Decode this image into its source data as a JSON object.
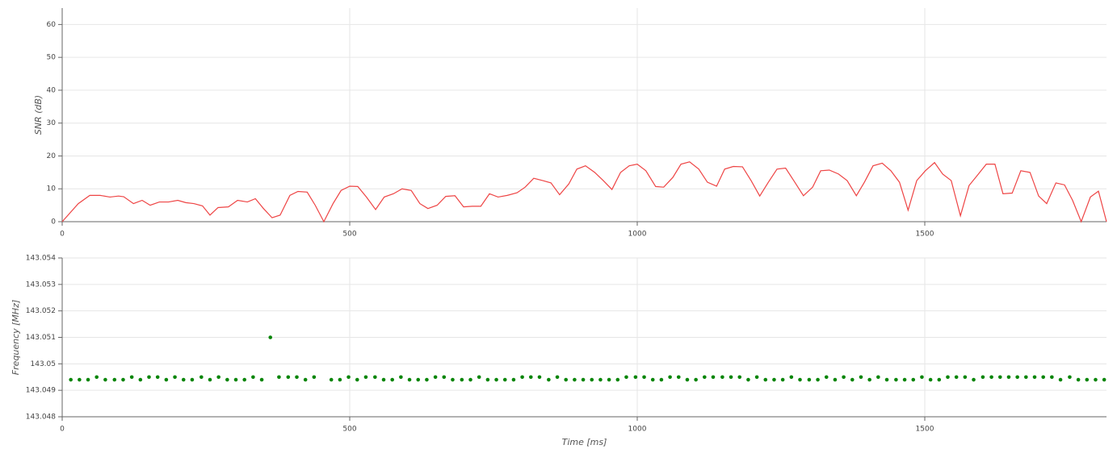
{
  "chart_data": [
    {
      "type": "line",
      "ylabel": "SNR (dB)",
      "color": "#ee4444",
      "grid": true,
      "xlim": [
        0,
        1816
      ],
      "xticks": [
        0,
        500,
        1000,
        1500
      ],
      "ylim": [
        0,
        65
      ],
      "yticks": [
        0,
        10,
        20,
        30,
        40,
        50,
        60
      ],
      "x": [
        0,
        28,
        48,
        66,
        83,
        98,
        107,
        124,
        139,
        153,
        169,
        185,
        201,
        215,
        229,
        244,
        257,
        271,
        289,
        305,
        322,
        336,
        350,
        365,
        379,
        396,
        410,
        426,
        440,
        455,
        471,
        485,
        500,
        514,
        529,
        545,
        560,
        576,
        591,
        607,
        622,
        636,
        652,
        667,
        683,
        698,
        713,
        728,
        743,
        758,
        774,
        791,
        805,
        820,
        836,
        850,
        865,
        881,
        895,
        910,
        926,
        941,
        956,
        971,
        986,
        1000,
        1015,
        1032,
        1046,
        1062,
        1076,
        1091,
        1107,
        1122,
        1138,
        1152,
        1167,
        1183,
        1198,
        1213,
        1228,
        1243,
        1258,
        1274,
        1289,
        1305,
        1319,
        1334,
        1350,
        1365,
        1381,
        1395,
        1410,
        1426,
        1441,
        1456,
        1471,
        1486,
        1501,
        1517,
        1531,
        1546,
        1562,
        1577,
        1591,
        1607,
        1622,
        1636,
        1652,
        1667,
        1683,
        1698,
        1712,
        1728,
        1743,
        1757,
        1772,
        1788,
        1802,
        1816
      ],
      "values": [
        0,
        5.5,
        8,
        8,
        7.5,
        7.8,
        7.6,
        5.5,
        6.5,
        5,
        6,
        6,
        6.5,
        5.8,
        5.5,
        4.8,
        2,
        4.3,
        4.5,
        6.5,
        6,
        7,
        4,
        1.2,
        2,
        8,
        9.2,
        9,
        5,
        0,
        5.5,
        9.5,
        10.8,
        10.7,
        7.5,
        3.7,
        7.5,
        8.5,
        10,
        9.5,
        5.5,
        4,
        5,
        7.7,
        7.9,
        4.5,
        4.7,
        4.7,
        8.5,
        7.5,
        8,
        8.8,
        10.5,
        13.2,
        12.5,
        11.8,
        8.2,
        11.5,
        16,
        17,
        15,
        12.5,
        9.8,
        15,
        17,
        17.5,
        15.5,
        10.7,
        10.5,
        13.5,
        17.5,
        18.2,
        16,
        12,
        10.8,
        16,
        16.8,
        16.7,
        12.5,
        7.8,
        12,
        16,
        16.3,
        12,
        7.9,
        10.5,
        15.5,
        15.7,
        14.5,
        12.5,
        7.9,
        12,
        17,
        17.8,
        15.5,
        12,
        3.5,
        12.5,
        15.5,
        18,
        14.5,
        12.5,
        1.8,
        11,
        14,
        17.5,
        17.5,
        8.5,
        8.7,
        15.5,
        15,
        7.8,
        5.5,
        11.8,
        11.2,
        6.5,
        0,
        7.5,
        9.3,
        0
      ]
    },
    {
      "type": "scatter",
      "ylabel": "Frequency [MHz]",
      "xlabel": "Time [ms]",
      "color": "#078507",
      "grid": true,
      "xlim": [
        0,
        1816
      ],
      "xticks": [
        0,
        500,
        1000,
        1500
      ],
      "ylim": [
        143.048,
        143.054
      ],
      "yticks": [
        143.048,
        143.049,
        143.05,
        143.051,
        143.052,
        143.053,
        143.054
      ],
      "x": [
        15,
        30,
        45,
        60,
        75,
        91,
        106,
        121,
        136,
        151,
        166,
        181,
        196,
        211,
        226,
        242,
        257,
        272,
        287,
        302,
        317,
        332,
        347,
        362,
        377,
        393,
        408,
        423,
        438,
        468,
        483,
        498,
        513,
        528,
        544,
        559,
        574,
        589,
        604,
        619,
        634,
        649,
        664,
        679,
        695,
        710,
        725,
        740,
        755,
        770,
        785,
        800,
        815,
        830,
        846,
        861,
        876,
        891,
        906,
        921,
        936,
        951,
        966,
        981,
        997,
        1012,
        1027,
        1042,
        1057,
        1072,
        1087,
        1102,
        1117,
        1132,
        1148,
        1163,
        1178,
        1193,
        1208,
        1223,
        1238,
        1253,
        1268,
        1283,
        1299,
        1314,
        1329,
        1344,
        1359,
        1374,
        1389,
        1404,
        1419,
        1434,
        1450,
        1465,
        1480,
        1495,
        1510,
        1525,
        1540,
        1555,
        1570,
        1585,
        1601,
        1616,
        1631,
        1646,
        1661,
        1676,
        1691,
        1706,
        1721,
        1736,
        1752,
        1767,
        1782,
        1797,
        1812
      ],
      "values": [
        143.0494,
        143.0494,
        143.0494,
        143.0495,
        143.0494,
        143.0494,
        143.0494,
        143.0495,
        143.0494,
        143.0495,
        143.0495,
        143.0494,
        143.0495,
        143.0494,
        143.0494,
        143.0495,
        143.0494,
        143.0495,
        143.0494,
        143.0494,
        143.0494,
        143.0495,
        143.0494,
        143.051,
        143.0495,
        143.0495,
        143.0495,
        143.0494,
        143.0495,
        143.0494,
        143.0494,
        143.0495,
        143.0494,
        143.0495,
        143.0495,
        143.0494,
        143.0494,
        143.0495,
        143.0494,
        143.0494,
        143.0494,
        143.0495,
        143.0495,
        143.0494,
        143.0494,
        143.0494,
        143.0495,
        143.0494,
        143.0494,
        143.0494,
        143.0494,
        143.0495,
        143.0495,
        143.0495,
        143.0494,
        143.0495,
        143.0494,
        143.0494,
        143.0494,
        143.0494,
        143.0494,
        143.0494,
        143.0494,
        143.0495,
        143.0495,
        143.0495,
        143.0494,
        143.0494,
        143.0495,
        143.0495,
        143.0494,
        143.0494,
        143.0495,
        143.0495,
        143.0495,
        143.0495,
        143.0495,
        143.0494,
        143.0495,
        143.0494,
        143.0494,
        143.0494,
        143.0495,
        143.0494,
        143.0494,
        143.0494,
        143.0495,
        143.0494,
        143.0495,
        143.0494,
        143.0495,
        143.0494,
        143.0495,
        143.0494,
        143.0494,
        143.0494,
        143.0494,
        143.0495,
        143.0494,
        143.0494,
        143.0495,
        143.0495,
        143.0495,
        143.0494,
        143.0495,
        143.0495,
        143.0495,
        143.0495,
        143.0495,
        143.0495,
        143.0495,
        143.0495,
        143.0495,
        143.0494,
        143.0495,
        143.0494,
        143.0494,
        143.0494,
        143.0494
      ]
    }
  ]
}
